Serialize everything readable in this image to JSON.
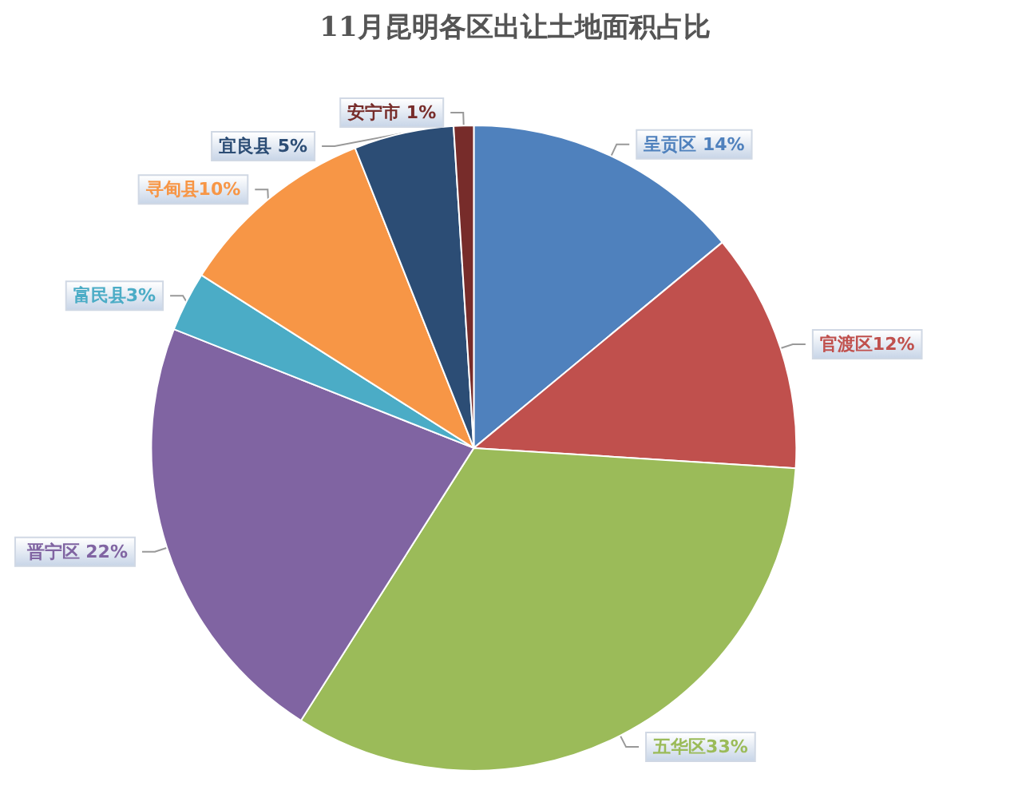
{
  "chart_data": {
    "type": "pie",
    "title": "11月昆明各区出让土地面积占比",
    "categories": [
      "呈贡区",
      "官渡区",
      "五华区",
      "晋宁区",
      "富民县",
      "寻甸县",
      "宜良县",
      "安宁市"
    ],
    "values": [
      14,
      12,
      33,
      22,
      3,
      10,
      5,
      1
    ],
    "colors": [
      "#4f81bd",
      "#c0504d",
      "#9bbb59",
      "#8064a2",
      "#4bacc6",
      "#f79646",
      "#2c4d75",
      "#772c2a"
    ],
    "value_labels": [
      " 14%",
      "12%",
      "33%",
      " 22%",
      "3%",
      "10%",
      " 5%",
      " 1%"
    ],
    "legend": false
  }
}
